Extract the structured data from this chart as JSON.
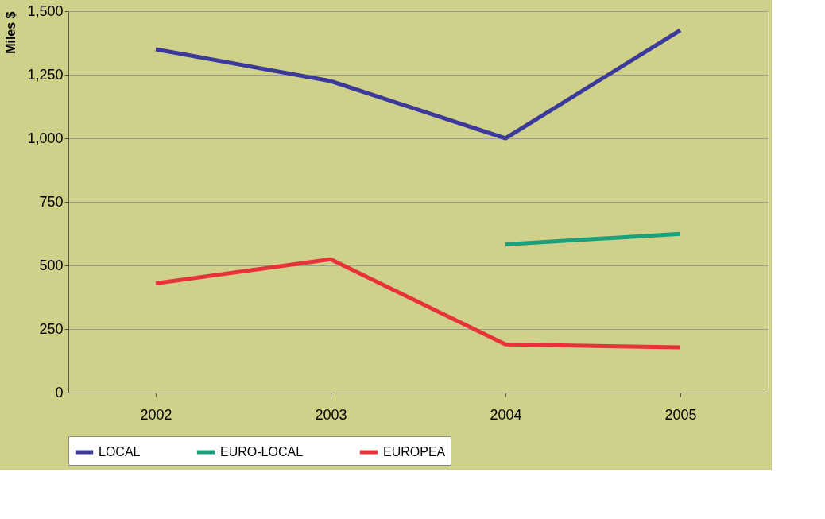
{
  "chart_data": {
    "type": "line",
    "ylabel": "Miles $",
    "categories": [
      "2002",
      "2003",
      "2004",
      "2005"
    ],
    "series": [
      {
        "name": "LOCAL",
        "color": "#3b3a9a",
        "values": [
          1350,
          1225,
          1000,
          1425
        ]
      },
      {
        "name": "EURO-LOCAL",
        "color": "#1aa07a",
        "values": [
          null,
          null,
          583,
          624
        ]
      },
      {
        "name": "EUROPEA",
        "color": "#e8323a",
        "values": [
          430,
          524,
          190,
          178
        ]
      }
    ],
    "ylim": [
      0,
      1500
    ],
    "yticks": [
      0,
      250,
      500,
      750,
      {
        "value": 1000,
        "label": "1,000"
      },
      {
        "value": 1250,
        "label": "1,250"
      },
      {
        "value": 1500,
        "label": "1,500"
      }
    ],
    "grid": "y",
    "legend": "bottom",
    "marker": "none",
    "line_style": "solid"
  }
}
